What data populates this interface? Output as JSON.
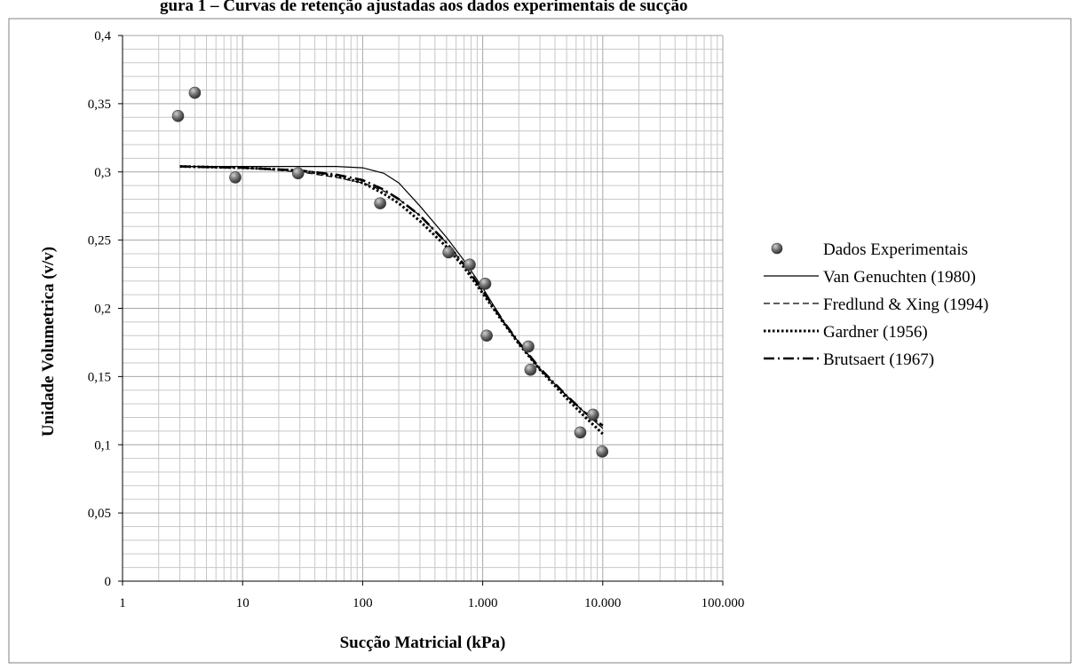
{
  "caption_fragment": "gura 1 – Curvas de retenção ajustadas aos dados experimentais de sucção",
  "chart_data": {
    "type": "scatter",
    "xlabel": "Sucção Matricial (kPa)",
    "ylabel": "Unidade  Volumetrica  (v/v)",
    "x_scale": "log",
    "xlim": [
      1,
      100000
    ],
    "ylim": [
      0,
      0.4
    ],
    "grid": true,
    "legend_position": "right",
    "x_ticks": [
      {
        "value": 1,
        "label": "1"
      },
      {
        "value": 10,
        "label": "10"
      },
      {
        "value": 100,
        "label": "100"
      },
      {
        "value": 1000,
        "label": "1.000"
      },
      {
        "value": 10000,
        "label": "10.000"
      },
      {
        "value": 100000,
        "label": "100.000"
      }
    ],
    "y_ticks": [
      {
        "value": 0,
        "label": "0"
      },
      {
        "value": 0.05,
        "label": "0,05"
      },
      {
        "value": 0.1,
        "label": "0,1"
      },
      {
        "value": 0.15,
        "label": "0,15"
      },
      {
        "value": 0.2,
        "label": "0,2"
      },
      {
        "value": 0.25,
        "label": "0,25"
      },
      {
        "value": 0.3,
        "label": "0,3"
      },
      {
        "value": 0.35,
        "label": "0,35"
      },
      {
        "value": 0.4,
        "label": "0,4"
      }
    ],
    "series": [
      {
        "name": "Dados Experimentais",
        "kind": "points",
        "x": [
          2.9,
          4.0,
          8.7,
          29,
          140,
          520,
          780,
          1050,
          1080,
          2400,
          2500,
          6500,
          8300,
          9900
        ],
        "y": [
          0.341,
          0.358,
          0.296,
          0.299,
          0.277,
          0.241,
          0.232,
          0.218,
          0.18,
          0.172,
          0.155,
          0.109,
          0.122,
          0.095
        ]
      },
      {
        "name": "Van Genuchten (1980)",
        "kind": "line",
        "dash": "solid",
        "x": [
          3,
          10,
          30,
          60,
          100,
          150,
          200,
          300,
          500,
          700,
          1000,
          1500,
          2000,
          3000,
          5000,
          7000,
          10000
        ],
        "y": [
          0.304,
          0.304,
          0.304,
          0.304,
          0.303,
          0.299,
          0.292,
          0.275,
          0.252,
          0.235,
          0.215,
          0.19,
          0.175,
          0.155,
          0.136,
          0.124,
          0.112
        ]
      },
      {
        "name": "Fredlund & Xing (1994)",
        "kind": "line",
        "dash": "dashed",
        "x": [
          3,
          10,
          30,
          60,
          100,
          150,
          200,
          300,
          500,
          700,
          1000,
          1500,
          2000,
          3000,
          5000,
          7000,
          10000
        ],
        "y": [
          0.304,
          0.303,
          0.3,
          0.296,
          0.292,
          0.286,
          0.28,
          0.268,
          0.248,
          0.232,
          0.212,
          0.189,
          0.174,
          0.155,
          0.136,
          0.124,
          0.114
        ]
      },
      {
        "name": "Gardner (1956)",
        "kind": "line",
        "dash": "dotted",
        "x": [
          3,
          10,
          30,
          60,
          100,
          150,
          200,
          300,
          500,
          700,
          1000,
          1500,
          2000,
          3000,
          5000,
          7000,
          10000
        ],
        "y": [
          0.304,
          0.303,
          0.301,
          0.297,
          0.292,
          0.284,
          0.277,
          0.264,
          0.245,
          0.23,
          0.211,
          0.189,
          0.174,
          0.155,
          0.134,
          0.121,
          0.108
        ]
      },
      {
        "name": "Brutsaert (1967)",
        "kind": "line",
        "dash": "dashdot",
        "x": [
          3,
          10,
          30,
          60,
          100,
          150,
          200,
          300,
          500,
          700,
          1000,
          1500,
          2000,
          3000,
          5000,
          7000,
          10000
        ],
        "y": [
          0.304,
          0.303,
          0.301,
          0.298,
          0.294,
          0.287,
          0.28,
          0.268,
          0.248,
          0.232,
          0.213,
          0.19,
          0.175,
          0.156,
          0.136,
          0.124,
          0.114
        ]
      }
    ]
  }
}
